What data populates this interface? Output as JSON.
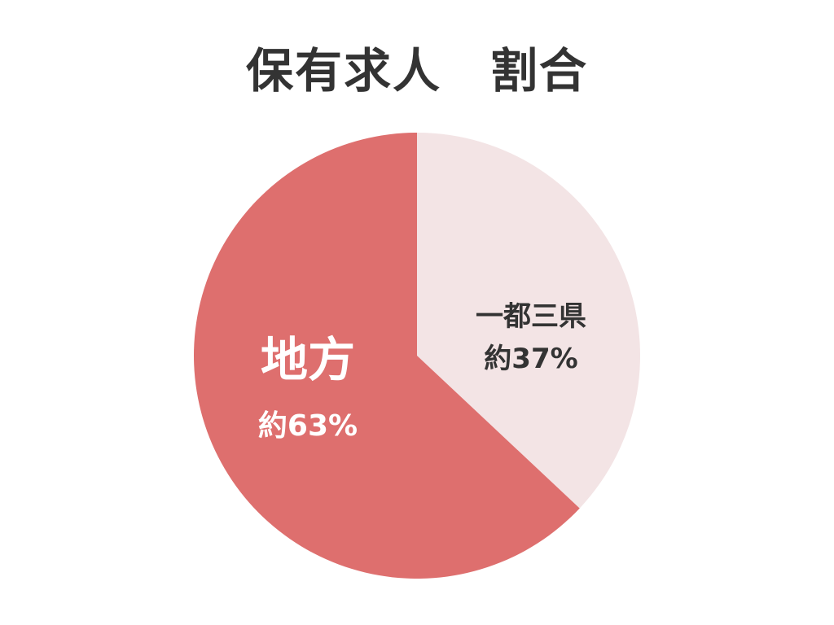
{
  "chart_data": {
    "type": "pie",
    "title": "保有求人　割合",
    "slices": [
      {
        "name": "一都三県",
        "label": "約37%",
        "value": 37,
        "color": "#F3E4E5",
        "text_color": "#333333"
      },
      {
        "name": "地方",
        "label": "約63%",
        "value": 63,
        "color": "#DE6F6E",
        "text_color": "#FFFFFF"
      }
    ],
    "start": "12 o'clock",
    "direction": "clockwise"
  }
}
